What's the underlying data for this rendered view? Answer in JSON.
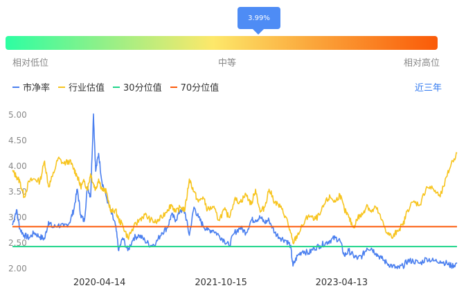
{
  "tooltip": {
    "value": "3.99%"
  },
  "valuation_scale": {
    "low": "相对低位",
    "mid": "中等",
    "high": "相对高位"
  },
  "legend": [
    {
      "label": "市净率",
      "color": "#4a7fef"
    },
    {
      "label": "行业估值",
      "color": "#f7c41e"
    },
    {
      "label": "30分位值",
      "color": "#1fd58a"
    },
    {
      "label": "70分位值",
      "color": "#fb5a0a"
    }
  ],
  "range_selector": {
    "label": "近三年"
  },
  "colors": {
    "tooltip": "#4e8cf5",
    "accent": "#2f78f0"
  },
  "chart_data": {
    "type": "line",
    "title": "",
    "xlabel": "",
    "ylabel": "",
    "ylim": [
      2.0,
      5.0
    ],
    "yticks": [
      "2.00",
      "2.50",
      "3.00",
      "3.50",
      "4.00",
      "4.50",
      "5.00"
    ],
    "x_range": [
      "2019-03-18",
      "2024-09-15"
    ],
    "xticks": [
      "2020-04-14",
      "2021-10-15",
      "2023-04-13"
    ],
    "series": [
      {
        "name": "市净率",
        "color": "#4a7fef",
        "points": [
          [
            "2019-03-18",
            2.85
          ],
          [
            "2019-04-05",
            3.15
          ],
          [
            "2019-04-20",
            2.78
          ],
          [
            "2019-05-10",
            2.65
          ],
          [
            "2019-06-01",
            2.6
          ],
          [
            "2019-06-25",
            2.7
          ],
          [
            "2019-07-20",
            2.62
          ],
          [
            "2019-08-10",
            2.58
          ],
          [
            "2019-08-28",
            2.92
          ],
          [
            "2019-09-15",
            2.8
          ],
          [
            "2019-10-10",
            2.85
          ],
          [
            "2019-11-05",
            2.82
          ],
          [
            "2019-12-01",
            2.9
          ],
          [
            "2019-12-20",
            3.15
          ],
          [
            "2020-01-05",
            3.55
          ],
          [
            "2020-01-20",
            3.05
          ],
          [
            "2020-02-05",
            2.92
          ],
          [
            "2020-02-20",
            3.6
          ],
          [
            "2020-03-05",
            3.4
          ],
          [
            "2020-03-18",
            5.02
          ],
          [
            "2020-03-28",
            3.9
          ],
          [
            "2020-04-10",
            4.25
          ],
          [
            "2020-04-25",
            3.7
          ],
          [
            "2020-05-15",
            3.4
          ],
          [
            "2020-06-05",
            3.1
          ],
          [
            "2020-06-25",
            2.85
          ],
          [
            "2020-07-10",
            2.35
          ],
          [
            "2020-07-28",
            2.6
          ],
          [
            "2020-08-20",
            2.35
          ],
          [
            "2020-09-15",
            2.6
          ],
          [
            "2020-10-10",
            2.65
          ],
          [
            "2020-11-05",
            2.55
          ],
          [
            "2020-12-01",
            2.45
          ],
          [
            "2020-12-25",
            2.5
          ],
          [
            "2021-01-20",
            2.7
          ],
          [
            "2021-02-15",
            2.8
          ],
          [
            "2021-03-05",
            3.05
          ],
          [
            "2021-03-25",
            2.95
          ],
          [
            "2021-04-15",
            3.15
          ],
          [
            "2021-05-05",
            3.1
          ],
          [
            "2021-05-25",
            2.65
          ],
          [
            "2021-06-15",
            3.2
          ],
          [
            "2021-07-05",
            3.0
          ],
          [
            "2021-07-25",
            2.85
          ],
          [
            "2021-08-15",
            2.75
          ],
          [
            "2021-09-10",
            2.75
          ],
          [
            "2021-10-05",
            2.65
          ],
          [
            "2021-10-30",
            2.55
          ],
          [
            "2021-11-20",
            2.45
          ],
          [
            "2021-12-15",
            2.7
          ],
          [
            "2022-01-10",
            2.8
          ],
          [
            "2022-02-05",
            2.7
          ],
          [
            "2022-03-01",
            2.95
          ],
          [
            "2022-03-20",
            2.95
          ],
          [
            "2022-04-10",
            3.0
          ],
          [
            "2022-04-30",
            2.9
          ],
          [
            "2022-05-20",
            2.95
          ],
          [
            "2022-06-15",
            2.7
          ],
          [
            "2022-07-10",
            2.6
          ],
          [
            "2022-08-05",
            2.55
          ],
          [
            "2022-08-25",
            2.45
          ],
          [
            "2022-09-05",
            2.05
          ],
          [
            "2022-09-25",
            2.25
          ],
          [
            "2022-10-20",
            2.35
          ],
          [
            "2022-11-15",
            2.3
          ],
          [
            "2022-12-10",
            2.4
          ],
          [
            "2023-01-05",
            2.45
          ],
          [
            "2023-01-30",
            2.5
          ],
          [
            "2023-02-20",
            2.55
          ],
          [
            "2023-03-15",
            2.6
          ],
          [
            "2023-04-05",
            2.55
          ],
          [
            "2023-04-25",
            2.25
          ],
          [
            "2023-05-15",
            2.35
          ],
          [
            "2023-06-05",
            2.25
          ],
          [
            "2023-06-25",
            2.2
          ],
          [
            "2023-07-15",
            2.25
          ],
          [
            "2023-08-05",
            2.4
          ],
          [
            "2023-08-25",
            2.4
          ],
          [
            "2023-09-15",
            2.3
          ],
          [
            "2023-10-10",
            2.2
          ],
          [
            "2023-11-05",
            2.1
          ],
          [
            "2023-11-30",
            2.05
          ],
          [
            "2023-12-20",
            2.0
          ],
          [
            "2024-01-15",
            2.05
          ],
          [
            "2024-02-05",
            2.15
          ],
          [
            "2024-03-01",
            2.15
          ],
          [
            "2024-04-01",
            2.1
          ],
          [
            "2024-05-01",
            2.2
          ],
          [
            "2024-06-01",
            2.15
          ],
          [
            "2024-07-01",
            2.15
          ],
          [
            "2024-08-01",
            2.1
          ],
          [
            "2024-08-20",
            2.05
          ],
          [
            "2024-09-15",
            2.1
          ]
        ]
      },
      {
        "name": "行业估值",
        "color": "#f7c41e",
        "points": [
          [
            "2019-03-18",
            3.9
          ],
          [
            "2019-04-05",
            3.8
          ],
          [
            "2019-04-20",
            3.7
          ],
          [
            "2019-05-10",
            3.4
          ],
          [
            "2019-06-01",
            3.7
          ],
          [
            "2019-06-25",
            3.75
          ],
          [
            "2019-07-20",
            3.7
          ],
          [
            "2019-08-10",
            4.1
          ],
          [
            "2019-08-28",
            3.6
          ],
          [
            "2019-09-15",
            3.8
          ],
          [
            "2019-10-10",
            4.15
          ],
          [
            "2019-11-05",
            4.05
          ],
          [
            "2019-12-01",
            4.1
          ],
          [
            "2019-12-20",
            3.95
          ],
          [
            "2020-01-05",
            3.8
          ],
          [
            "2020-01-20",
            3.6
          ],
          [
            "2020-02-05",
            3.7
          ],
          [
            "2020-02-20",
            3.55
          ],
          [
            "2020-03-05",
            3.85
          ],
          [
            "2020-03-18",
            3.65
          ],
          [
            "2020-03-28",
            3.55
          ],
          [
            "2020-04-10",
            3.75
          ],
          [
            "2020-04-25",
            3.55
          ],
          [
            "2020-05-15",
            3.5
          ],
          [
            "2020-06-05",
            3.1
          ],
          [
            "2020-06-25",
            3.15
          ],
          [
            "2020-07-10",
            2.95
          ],
          [
            "2020-07-28",
            2.85
          ],
          [
            "2020-08-20",
            2.6
          ],
          [
            "2020-09-15",
            2.8
          ],
          [
            "2020-10-10",
            2.95
          ],
          [
            "2020-11-05",
            3.05
          ],
          [
            "2020-12-01",
            2.95
          ],
          [
            "2020-12-25",
            2.9
          ],
          [
            "2021-01-20",
            3.0
          ],
          [
            "2021-02-15",
            3.15
          ],
          [
            "2021-03-05",
            3.25
          ],
          [
            "2021-03-25",
            3.1
          ],
          [
            "2021-04-15",
            3.2
          ],
          [
            "2021-05-05",
            3.15
          ],
          [
            "2021-05-25",
            3.75
          ],
          [
            "2021-06-15",
            3.5
          ],
          [
            "2021-07-05",
            3.3
          ],
          [
            "2021-07-25",
            3.4
          ],
          [
            "2021-08-15",
            3.15
          ],
          [
            "2021-09-10",
            3.2
          ],
          [
            "2021-10-05",
            2.95
          ],
          [
            "2021-10-30",
            3.15
          ],
          [
            "2021-11-20",
            3.0
          ],
          [
            "2021-12-15",
            3.35
          ],
          [
            "2022-01-10",
            3.3
          ],
          [
            "2022-02-05",
            3.45
          ],
          [
            "2022-03-01",
            3.25
          ],
          [
            "2022-03-20",
            3.55
          ],
          [
            "2022-04-10",
            3.1
          ],
          [
            "2022-04-30",
            3.2
          ],
          [
            "2022-05-20",
            3.55
          ],
          [
            "2022-06-15",
            3.3
          ],
          [
            "2022-07-10",
            3.2
          ],
          [
            "2022-08-05",
            3.0
          ],
          [
            "2022-08-25",
            2.7
          ],
          [
            "2022-09-05",
            2.5
          ],
          [
            "2022-09-25",
            2.65
          ],
          [
            "2022-10-20",
            2.85
          ],
          [
            "2022-11-15",
            3.05
          ],
          [
            "2022-12-10",
            2.95
          ],
          [
            "2023-01-05",
            3.05
          ],
          [
            "2023-01-30",
            3.3
          ],
          [
            "2023-02-20",
            3.4
          ],
          [
            "2023-03-15",
            3.3
          ],
          [
            "2023-04-05",
            3.45
          ],
          [
            "2023-04-25",
            3.15
          ],
          [
            "2023-05-15",
            3.0
          ],
          [
            "2023-06-05",
            2.8
          ],
          [
            "2023-06-25",
            3.0
          ],
          [
            "2023-07-15",
            3.05
          ],
          [
            "2023-08-05",
            3.25
          ],
          [
            "2023-08-25",
            3.1
          ],
          [
            "2023-09-15",
            3.2
          ],
          [
            "2023-10-10",
            2.95
          ],
          [
            "2023-11-05",
            2.7
          ],
          [
            "2023-11-30",
            2.6
          ],
          [
            "2023-12-20",
            2.75
          ],
          [
            "2024-01-15",
            2.85
          ],
          [
            "2024-02-05",
            3.15
          ],
          [
            "2024-03-01",
            3.3
          ],
          [
            "2024-04-01",
            3.25
          ],
          [
            "2024-05-01",
            3.6
          ],
          [
            "2024-06-01",
            3.55
          ],
          [
            "2024-07-01",
            3.4
          ],
          [
            "2024-08-01",
            3.8
          ],
          [
            "2024-08-20",
            4.05
          ],
          [
            "2024-09-15",
            4.25
          ]
        ]
      }
    ],
    "reference_lines": [
      {
        "name": "30分位值",
        "value": 2.43,
        "color": "#1fd58a"
      },
      {
        "name": "70分位值",
        "value": 2.82,
        "color": "#fb5a0a"
      }
    ]
  }
}
